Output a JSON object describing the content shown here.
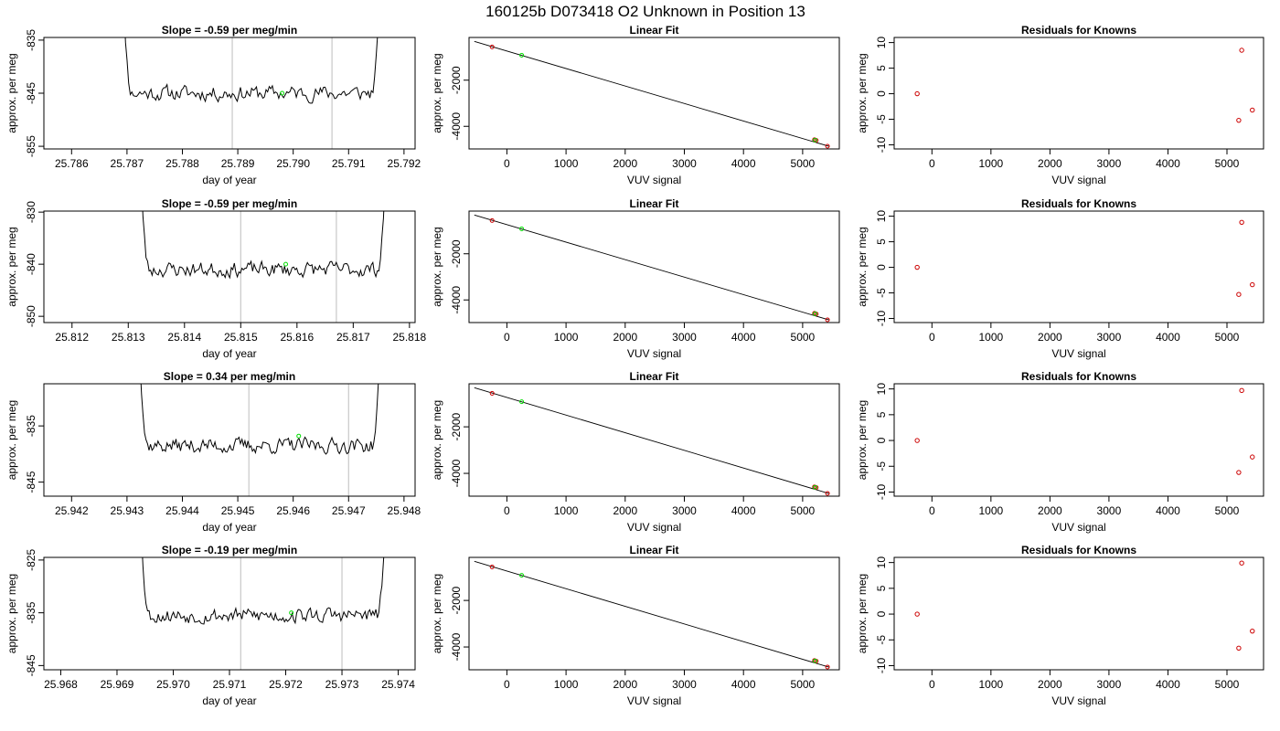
{
  "suptitle": "160125b      D073418    O2 Unknown in Position  13",
  "chart_data": [
    {
      "type": "line",
      "title": "Slope =  -0.59  per meg/min",
      "xlabel": "day of year",
      "ylabel": "approx. per meg",
      "xlim": [
        25.7855,
        25.7922
      ],
      "ylim": [
        -855.5,
        -834.5
      ],
      "xticks": [
        "25.786",
        "25.787",
        "25.788",
        "25.789",
        "25.790",
        "25.791",
        "25.792"
      ],
      "xtick_values": [
        25.786,
        25.787,
        25.788,
        25.789,
        25.79,
        25.791,
        25.792
      ],
      "yticks": [
        "-855",
        "-845",
        "-835"
      ],
      "ytick_values": [
        -855,
        -845,
        -835
      ],
      "vlines": [
        25.7889,
        25.7907
      ],
      "line_x_range": [
        25.7868,
        25.7917
      ],
      "signal": {
        "mean": -845.0,
        "noise": 1.4,
        "seed": 11
      },
      "highlight_point": {
        "x": 25.7898,
        "y": -845.0,
        "color": "#00dd00"
      },
      "line_color": "#000000"
    },
    {
      "type": "scatter",
      "title": "Linear Fit",
      "xlabel": "VUV signal",
      "ylabel": "approx. per meg",
      "xlim": [
        -640,
        5620
      ],
      "ylim": [
        -4980,
        -150
      ],
      "xticks": [
        "0",
        "1000",
        "2000",
        "3000",
        "4000",
        "5000"
      ],
      "xtick_values": [
        0,
        1000,
        2000,
        3000,
        4000,
        5000
      ],
      "yticks": [
        "-4000",
        "-2000"
      ],
      "ytick_values": [
        -4000,
        -2000
      ],
      "fit_line": {
        "x": [
          -550,
          5450
        ],
        "y": [
          -320,
          -4870
        ]
      },
      "knowns": [
        {
          "x": -250,
          "y": -560
        },
        {
          "x": 5200,
          "y": -4580
        },
        {
          "x": 5230,
          "y": -4610
        },
        {
          "x": 5420,
          "y": -4860
        }
      ],
      "unknowns": [
        {
          "x": 250,
          "y": -920
        },
        {
          "x": 5210,
          "y": -4600
        }
      ],
      "known_color": "#cc0000",
      "unknown_color": "#00dd00"
    },
    {
      "type": "scatter",
      "title": "Residuals for Knowns",
      "xlabel": "VUV signal",
      "ylabel": "approx. per meg",
      "xlim": [
        -640,
        5620
      ],
      "ylim": [
        -10.8,
        11.0
      ],
      "xticks": [
        "0",
        "1000",
        "2000",
        "3000",
        "4000",
        "5000"
      ],
      "xtick_values": [
        0,
        1000,
        2000,
        3000,
        4000,
        5000
      ],
      "yticks": [
        "-10",
        "-5",
        "0",
        "5",
        "10"
      ],
      "ytick_values": [
        -10,
        -5,
        0,
        5,
        10
      ],
      "points": [
        {
          "x": -250,
          "y": 0.0
        },
        {
          "x": 5250,
          "y": 8.5
        },
        {
          "x": 5200,
          "y": -5.2
        },
        {
          "x": 5430,
          "y": -3.2
        }
      ],
      "point_color": "#cc0000"
    },
    {
      "type": "line",
      "title": "Slope =  -0.59  per meg/min",
      "xlabel": "day of year",
      "ylabel": "approx. per meg",
      "xlim": [
        25.8115,
        25.8181
      ],
      "ylim": [
        -851.2,
        -829.8
      ],
      "xticks": [
        "25.812",
        "25.813",
        "25.814",
        "25.815",
        "25.816",
        "25.817",
        "25.818"
      ],
      "xtick_values": [
        25.812,
        25.813,
        25.814,
        25.815,
        25.816,
        25.817,
        25.818
      ],
      "yticks": [
        "-850",
        "-840",
        "-830"
      ],
      "ytick_values": [
        -850,
        -840,
        -830
      ],
      "vlines": [
        25.815,
        25.8167
      ],
      "line_x_range": [
        25.8131,
        25.8177
      ],
      "signal": {
        "mean": -841.0,
        "noise": 1.4,
        "seed": 23
      },
      "highlight_point": {
        "x": 25.8158,
        "y": -840.0,
        "color": "#00dd00"
      },
      "line_color": "#000000"
    },
    {
      "type": "scatter",
      "title": "Linear Fit",
      "xlabel": "VUV signal",
      "ylabel": "approx. per meg",
      "xlim": [
        -640,
        5620
      ],
      "ylim": [
        -4980,
        -150
      ],
      "xticks": [
        "0",
        "1000",
        "2000",
        "3000",
        "4000",
        "5000"
      ],
      "xtick_values": [
        0,
        1000,
        2000,
        3000,
        4000,
        5000
      ],
      "yticks": [
        "-4000",
        "-2000"
      ],
      "ytick_values": [
        -4000,
        -2000
      ],
      "fit_line": {
        "x": [
          -550,
          5450
        ],
        "y": [
          -320,
          -4870
        ]
      },
      "knowns": [
        {
          "x": -250,
          "y": -560
        },
        {
          "x": 5200,
          "y": -4580
        },
        {
          "x": 5230,
          "y": -4610
        },
        {
          "x": 5420,
          "y": -4860
        }
      ],
      "unknowns": [
        {
          "x": 250,
          "y": -920
        },
        {
          "x": 5210,
          "y": -4600
        }
      ],
      "known_color": "#cc0000",
      "unknown_color": "#00dd00"
    },
    {
      "type": "scatter",
      "title": "Residuals for Knowns",
      "xlabel": "VUV signal",
      "ylabel": "approx. per meg",
      "xlim": [
        -640,
        5620
      ],
      "ylim": [
        -10.8,
        11.0
      ],
      "xticks": [
        "0",
        "1000",
        "2000",
        "3000",
        "4000",
        "5000"
      ],
      "xtick_values": [
        0,
        1000,
        2000,
        3000,
        4000,
        5000
      ],
      "yticks": [
        "-10",
        "-5",
        "0",
        "5",
        "10"
      ],
      "ytick_values": [
        -10,
        -5,
        0,
        5,
        10
      ],
      "points": [
        {
          "x": -250,
          "y": 0.0
        },
        {
          "x": 5250,
          "y": 8.8
        },
        {
          "x": 5200,
          "y": -5.3
        },
        {
          "x": 5430,
          "y": -3.4
        }
      ],
      "point_color": "#cc0000"
    },
    {
      "type": "line",
      "title": "Slope =  0.34  per meg/min",
      "xlabel": "day of year",
      "ylabel": "approx. per meg",
      "xlim": [
        25.9415,
        25.9482
      ],
      "ylim": [
        -847.5,
        -827.5
      ],
      "xticks": [
        "25.942",
        "25.943",
        "25.944",
        "25.945",
        "25.946",
        "25.947",
        "25.948"
      ],
      "xtick_values": [
        25.942,
        25.943,
        25.944,
        25.945,
        25.946,
        25.947,
        25.948
      ],
      "yticks": [
        "-845",
        "-835"
      ],
      "ytick_values": [
        -845,
        -835
      ],
      "vlines": [
        25.9452,
        25.947
      ],
      "line_x_range": [
        25.9431,
        25.9477
      ],
      "signal": {
        "mean": -838.5,
        "noise": 1.3,
        "seed": 37
      },
      "highlight_point": {
        "x": 25.9461,
        "y": -836.8,
        "color": "#00dd00"
      },
      "line_color": "#000000"
    },
    {
      "type": "scatter",
      "title": "Linear Fit",
      "xlabel": "VUV signal",
      "ylabel": "approx. per meg",
      "xlim": [
        -640,
        5620
      ],
      "ylim": [
        -4980,
        -150
      ],
      "xticks": [
        "0",
        "1000",
        "2000",
        "3000",
        "4000",
        "5000"
      ],
      "xtick_values": [
        0,
        1000,
        2000,
        3000,
        4000,
        5000
      ],
      "yticks": [
        "-4000",
        "-2000"
      ],
      "ytick_values": [
        -4000,
        -2000
      ],
      "fit_line": {
        "x": [
          -550,
          5450
        ],
        "y": [
          -320,
          -4870
        ]
      },
      "knowns": [
        {
          "x": -250,
          "y": -560
        },
        {
          "x": 5200,
          "y": -4580
        },
        {
          "x": 5230,
          "y": -4610
        },
        {
          "x": 5420,
          "y": -4860
        }
      ],
      "unknowns": [
        {
          "x": 250,
          "y": -920
        },
        {
          "x": 5210,
          "y": -4600
        }
      ],
      "known_color": "#cc0000",
      "unknown_color": "#00dd00"
    },
    {
      "type": "scatter",
      "title": "Residuals for Knowns",
      "xlabel": "VUV signal",
      "ylabel": "approx. per meg",
      "xlim": [
        -640,
        5620
      ],
      "ylim": [
        -10.8,
        11.0
      ],
      "xticks": [
        "0",
        "1000",
        "2000",
        "3000",
        "4000",
        "5000"
      ],
      "xtick_values": [
        0,
        1000,
        2000,
        3000,
        4000,
        5000
      ],
      "yticks": [
        "-10",
        "-5",
        "0",
        "5",
        "10"
      ],
      "ytick_values": [
        -10,
        -5,
        0,
        5,
        10
      ],
      "points": [
        {
          "x": -250,
          "y": 0.0
        },
        {
          "x": 5250,
          "y": 9.7
        },
        {
          "x": 5200,
          "y": -6.2
        },
        {
          "x": 5430,
          "y": -3.2
        }
      ],
      "point_color": "#cc0000"
    },
    {
      "type": "line",
      "title": "Slope =  -0.19  per meg/min",
      "xlabel": "day of year",
      "ylabel": "approx. per meg",
      "xlim": [
        25.9677,
        25.9743
      ],
      "ylim": [
        -845.8,
        -824.5
      ],
      "xticks": [
        "25.968",
        "25.969",
        "25.970",
        "25.971",
        "25.972",
        "25.973",
        "25.974"
      ],
      "xtick_values": [
        25.968,
        25.969,
        25.97,
        25.971,
        25.972,
        25.973,
        25.974
      ],
      "yticks": [
        "-845",
        "-835",
        "-825"
      ],
      "ytick_values": [
        -845,
        -835,
        -825
      ],
      "vlines": [
        25.9712,
        25.973
      ],
      "line_x_range": [
        25.9693,
        25.9739
      ],
      "signal": {
        "mean": -835.5,
        "noise": 1.4,
        "seed": 53
      },
      "highlight_point": {
        "x": 25.9721,
        "y": -835.0,
        "color": "#00dd00"
      },
      "line_color": "#000000"
    },
    {
      "type": "scatter",
      "title": "Linear Fit",
      "xlabel": "VUV signal",
      "ylabel": "approx. per meg",
      "xlim": [
        -640,
        5620
      ],
      "ylim": [
        -4980,
        -150
      ],
      "xticks": [
        "0",
        "1000",
        "2000",
        "3000",
        "4000",
        "5000"
      ],
      "xtick_values": [
        0,
        1000,
        2000,
        3000,
        4000,
        5000
      ],
      "yticks": [
        "-4000",
        "-2000"
      ],
      "ytick_values": [
        -4000,
        -2000
      ],
      "fit_line": {
        "x": [
          -550,
          5450
        ],
        "y": [
          -320,
          -4870
        ]
      },
      "knowns": [
        {
          "x": -250,
          "y": -560
        },
        {
          "x": 5200,
          "y": -4580
        },
        {
          "x": 5230,
          "y": -4610
        },
        {
          "x": 5420,
          "y": -4860
        }
      ],
      "unknowns": [
        {
          "x": 250,
          "y": -920
        },
        {
          "x": 5210,
          "y": -4600
        }
      ],
      "known_color": "#cc0000",
      "unknown_color": "#00dd00"
    },
    {
      "type": "scatter",
      "title": "Residuals for Knowns",
      "xlabel": "VUV signal",
      "ylabel": "approx. per meg",
      "xlim": [
        -640,
        5620
      ],
      "ylim": [
        -10.8,
        11.0
      ],
      "xticks": [
        "0",
        "1000",
        "2000",
        "3000",
        "4000",
        "5000"
      ],
      "xtick_values": [
        0,
        1000,
        2000,
        3000,
        4000,
        5000
      ],
      "yticks": [
        "-10",
        "-5",
        "0",
        "5",
        "10"
      ],
      "points": [
        {
          "x": -250,
          "y": 0.0
        },
        {
          "x": 5250,
          "y": 9.9
        },
        {
          "x": 5200,
          "y": -6.6
        },
        {
          "x": 5430,
          "y": -3.3
        }
      ],
      "point_color": "#cc0000"
    }
  ]
}
